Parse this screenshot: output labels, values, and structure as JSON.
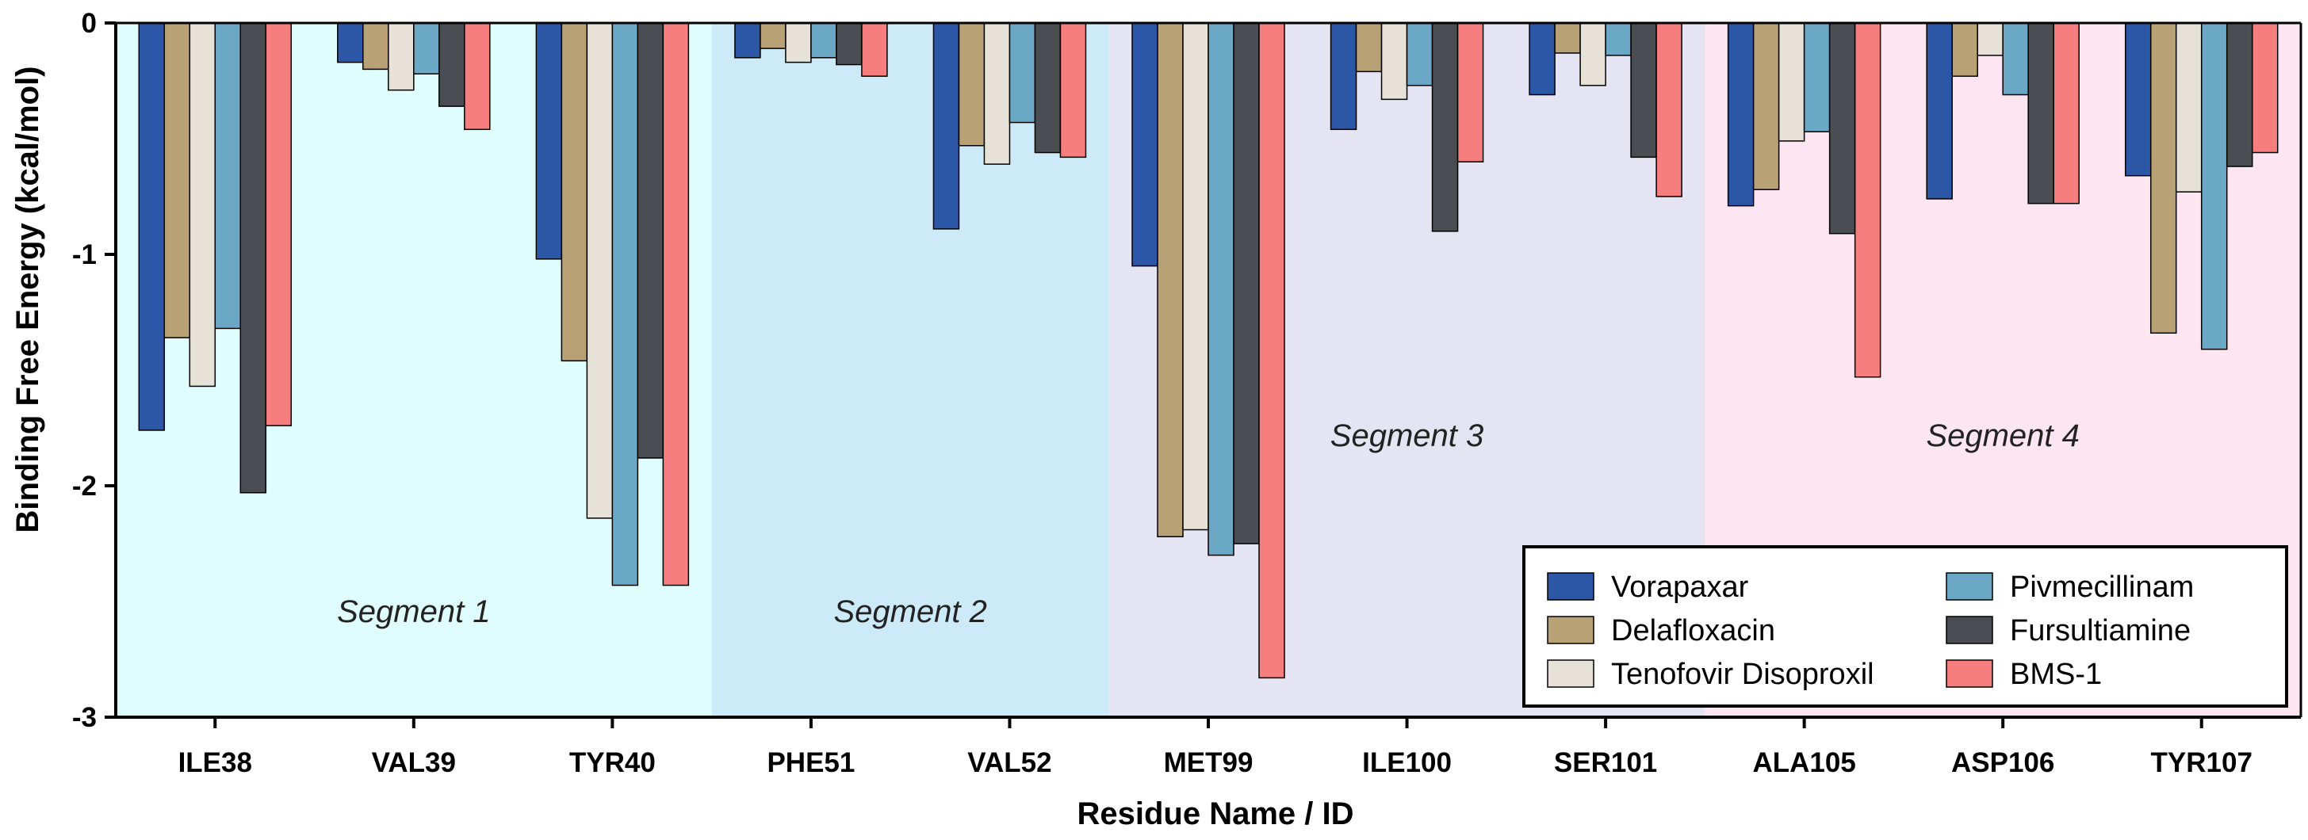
{
  "chart_data": {
    "type": "bar",
    "title": "",
    "xlabel": "Residue Name / ID",
    "ylabel": "Binding Free Energy (kcal/mol)",
    "ylim": [
      -3,
      0
    ],
    "yticks": [
      0,
      -1,
      -2,
      -3
    ],
    "ytick_labels": [
      "0",
      "-1",
      "-2",
      "-3"
    ],
    "grid": false,
    "legend_position": "bottom-right",
    "categories": [
      "ILE38",
      "VAL39",
      "TYR40",
      "PHE51",
      "VAL52",
      "MET99",
      "ILE100",
      "SER101",
      "ALA105",
      "ASP106",
      "TYR107"
    ],
    "series": [
      {
        "name": "Vorapaxar",
        "color": "#2c57a6",
        "values": [
          -1.76,
          -0.17,
          -1.02,
          -0.15,
          -0.89,
          -1.05,
          -0.46,
          -0.31,
          -0.79,
          -0.76,
          -0.66
        ]
      },
      {
        "name": "Delafloxacin",
        "color": "#b8a174",
        "values": [
          -1.36,
          -0.2,
          -1.46,
          -0.11,
          -0.53,
          -2.22,
          -0.21,
          -0.13,
          -0.72,
          -0.23,
          -1.34
        ]
      },
      {
        "name": "Tenofovir Disoproxil",
        "color": "#e6e2d8",
        "values": [
          -1.57,
          -0.29,
          -2.14,
          -0.17,
          -0.61,
          -2.19,
          -0.33,
          -0.27,
          -0.51,
          -0.14,
          -0.73
        ]
      },
      {
        "name": "Pivmecillinam",
        "color": "#6ba8c6",
        "values": [
          -1.32,
          -0.22,
          -2.43,
          -0.15,
          -0.43,
          -2.3,
          -0.27,
          -0.14,
          -0.47,
          -0.31,
          -1.41
        ]
      },
      {
        "name": "Fursultiamine",
        "color": "#4a4d51",
        "values": [
          -2.03,
          -0.36,
          -1.88,
          -0.18,
          -0.56,
          -2.25,
          -0.9,
          -0.58,
          -0.91,
          -0.78,
          -0.62
        ]
      },
      {
        "name": "BMS-1",
        "color": "#f67e7f",
        "values": [
          -1.74,
          -0.46,
          -2.43,
          -0.23,
          -0.58,
          -2.83,
          -0.6,
          -0.75,
          -1.53,
          -0.78,
          -0.56
        ]
      }
    ],
    "segments": [
      {
        "label": "Segment 1",
        "color": "#e0fdfd",
        "first": 0,
        "last": 2
      },
      {
        "label": "Segment 2",
        "color": "#cdeaf9",
        "first": 3,
        "last": 4
      },
      {
        "label": "Segment 3",
        "color": "#e5e4f2",
        "first": 5,
        "last": 7
      },
      {
        "label": "Segment 4",
        "color": "#fde5f1",
        "first": 8,
        "last": 10
      }
    ]
  }
}
